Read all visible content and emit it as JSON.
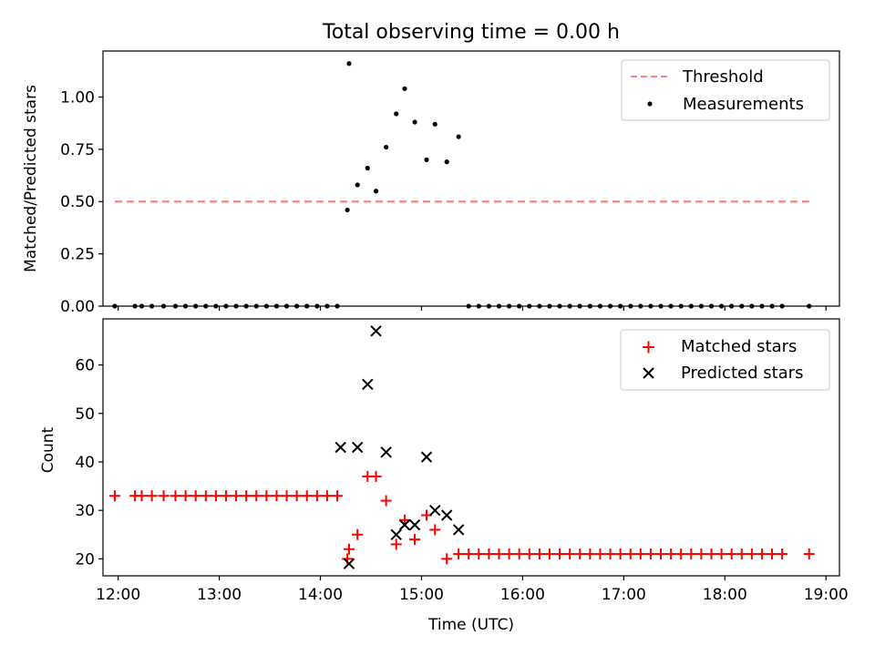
{
  "chart_data": [
    {
      "type": "scatter",
      "title": "Total observing time = 0.00 h",
      "xlabel": "",
      "ylabel": "Matched/Predicted stars",
      "xlim": [
        "11:51",
        "19:08"
      ],
      "ylim": [
        0,
        1.22
      ],
      "grid": false,
      "legend_position": "top-right",
      "y_ticks": [
        0.0,
        0.25,
        0.5,
        0.75,
        1.0
      ],
      "y_tick_labels": [
        "0.00",
        "0.25",
        "0.50",
        "0.75",
        "1.00"
      ],
      "series": [
        {
          "name": "Threshold",
          "kind": "dashed-line",
          "color": "#ff8080",
          "x": [
            "11:58",
            "18:50"
          ],
          "y": [
            0.5,
            0.5
          ]
        },
        {
          "name": "Measurements",
          "kind": "dots",
          "color": "#000000",
          "x": [
            "11:58",
            "12:10",
            "12:14",
            "12:20",
            "12:27",
            "12:34",
            "12:40",
            "12:46",
            "12:52",
            "12:58",
            "13:04",
            "13:10",
            "13:16",
            "13:22",
            "13:28",
            "13:34",
            "13:40",
            "13:46",
            "13:52",
            "13:58",
            "14:04",
            "14:10",
            "14:16",
            "14:22",
            "14:28",
            "14:33",
            "14:39",
            "14:45",
            "14:50",
            "14:56",
            "15:03",
            "15:08",
            "15:15",
            "15:22",
            "15:28",
            "15:34",
            "15:40",
            "15:46",
            "15:52",
            "15:58",
            "16:04",
            "16:10",
            "16:16",
            "16:22",
            "16:28",
            "16:34",
            "16:40",
            "16:46",
            "16:52",
            "16:58",
            "17:04",
            "17:10",
            "17:16",
            "17:22",
            "17:28",
            "17:34",
            "17:40",
            "17:46",
            "17:52",
            "17:58",
            "18:04",
            "18:10",
            "18:16",
            "18:22",
            "18:28",
            "18:34",
            "18:50"
          ],
          "y": [
            0,
            0,
            0,
            0,
            0,
            0,
            0,
            0,
            0,
            0,
            0,
            0,
            0,
            0,
            0,
            0,
            0,
            0,
            0,
            0,
            0,
            0,
            0.46,
            0.58,
            0.66,
            0.55,
            0.76,
            0.92,
            1.04,
            0.88,
            0.7,
            0.87,
            0.69,
            0.81,
            0,
            0,
            0,
            0,
            0,
            0,
            0,
            0,
            0,
            0,
            0,
            0,
            0,
            0,
            0,
            0,
            0,
            0,
            0,
            0,
            0,
            0,
            0,
            0,
            0,
            0,
            0,
            0,
            0,
            0,
            0,
            0,
            0
          ]
        },
        {
          "name": "",
          "kind": "dot",
          "color": "#000000",
          "x": [
            "14:17"
          ],
          "y": [
            1.16
          ]
        }
      ]
    },
    {
      "type": "scatter",
      "title": "",
      "xlabel": "Time (UTC)",
      "ylabel": "Count",
      "xlim": [
        "11:51",
        "19:08"
      ],
      "ylim": [
        16.5,
        69.5
      ],
      "grid": false,
      "legend_position": "top-right",
      "x_ticks": [
        "12:00",
        "13:00",
        "14:00",
        "15:00",
        "16:00",
        "17:00",
        "18:00",
        "19:00"
      ],
      "x_tick_labels": [
        "12:00",
        "13:00",
        "14:00",
        "15:00",
        "16:00",
        "17:00",
        "18:00",
        "19:00"
      ],
      "y_ticks": [
        20,
        30,
        40,
        50,
        60
      ],
      "y_tick_labels": [
        "20",
        "30",
        "40",
        "50",
        "60"
      ],
      "series": [
        {
          "name": "Matched stars",
          "marker": "plus",
          "color": "#ff0000",
          "x": [
            "11:58",
            "12:10",
            "12:14",
            "12:20",
            "12:27",
            "12:34",
            "12:40",
            "12:46",
            "12:52",
            "12:58",
            "13:04",
            "13:10",
            "13:16",
            "13:22",
            "13:28",
            "13:34",
            "13:40",
            "13:46",
            "13:52",
            "13:58",
            "14:04",
            "14:10",
            "14:16",
            "14:22",
            "14:28",
            "14:33",
            "14:39",
            "14:45",
            "14:50",
            "14:56",
            "15:03",
            "15:08",
            "15:15",
            "15:22",
            "15:28",
            "15:34",
            "15:40",
            "15:46",
            "15:52",
            "15:58",
            "16:04",
            "16:10",
            "16:16",
            "16:22",
            "16:28",
            "16:34",
            "16:40",
            "16:46",
            "16:52",
            "16:58",
            "17:04",
            "17:10",
            "17:16",
            "17:22",
            "17:28",
            "17:34",
            "17:40",
            "17:46",
            "17:52",
            "17:58",
            "18:04",
            "18:10",
            "18:16",
            "18:22",
            "18:28",
            "18:34",
            "18:50"
          ],
          "y": [
            33,
            33,
            33,
            33,
            33,
            33,
            33,
            33,
            33,
            33,
            33,
            33,
            33,
            33,
            33,
            33,
            33,
            33,
            33,
            33,
            33,
            33,
            20,
            25,
            37,
            37,
            32,
            23,
            28,
            24,
            29,
            26,
            20,
            21,
            21,
            21,
            21,
            21,
            21,
            21,
            21,
            21,
            21,
            21,
            21,
            21,
            21,
            21,
            21,
            21,
            21,
            21,
            21,
            21,
            21,
            21,
            21,
            21,
            21,
            21,
            21,
            21,
            21,
            21,
            21,
            21,
            21
          ]
        },
        {
          "name": "",
          "marker": "plus",
          "color": "#ff0000",
          "x": [
            "14:17"
          ],
          "y": [
            22
          ]
        },
        {
          "name": "Predicted stars",
          "marker": "x",
          "color": "#000000",
          "x": [
            "14:12",
            "14:17",
            "14:22",
            "14:28",
            "14:33",
            "14:39",
            "14:45",
            "14:50",
            "14:56",
            "15:03",
            "15:08",
            "15:15",
            "15:22"
          ],
          "y": [
            43,
            19,
            43,
            56,
            67,
            42,
            25,
            27,
            27,
            41,
            30,
            29,
            26
          ]
        }
      ]
    }
  ]
}
